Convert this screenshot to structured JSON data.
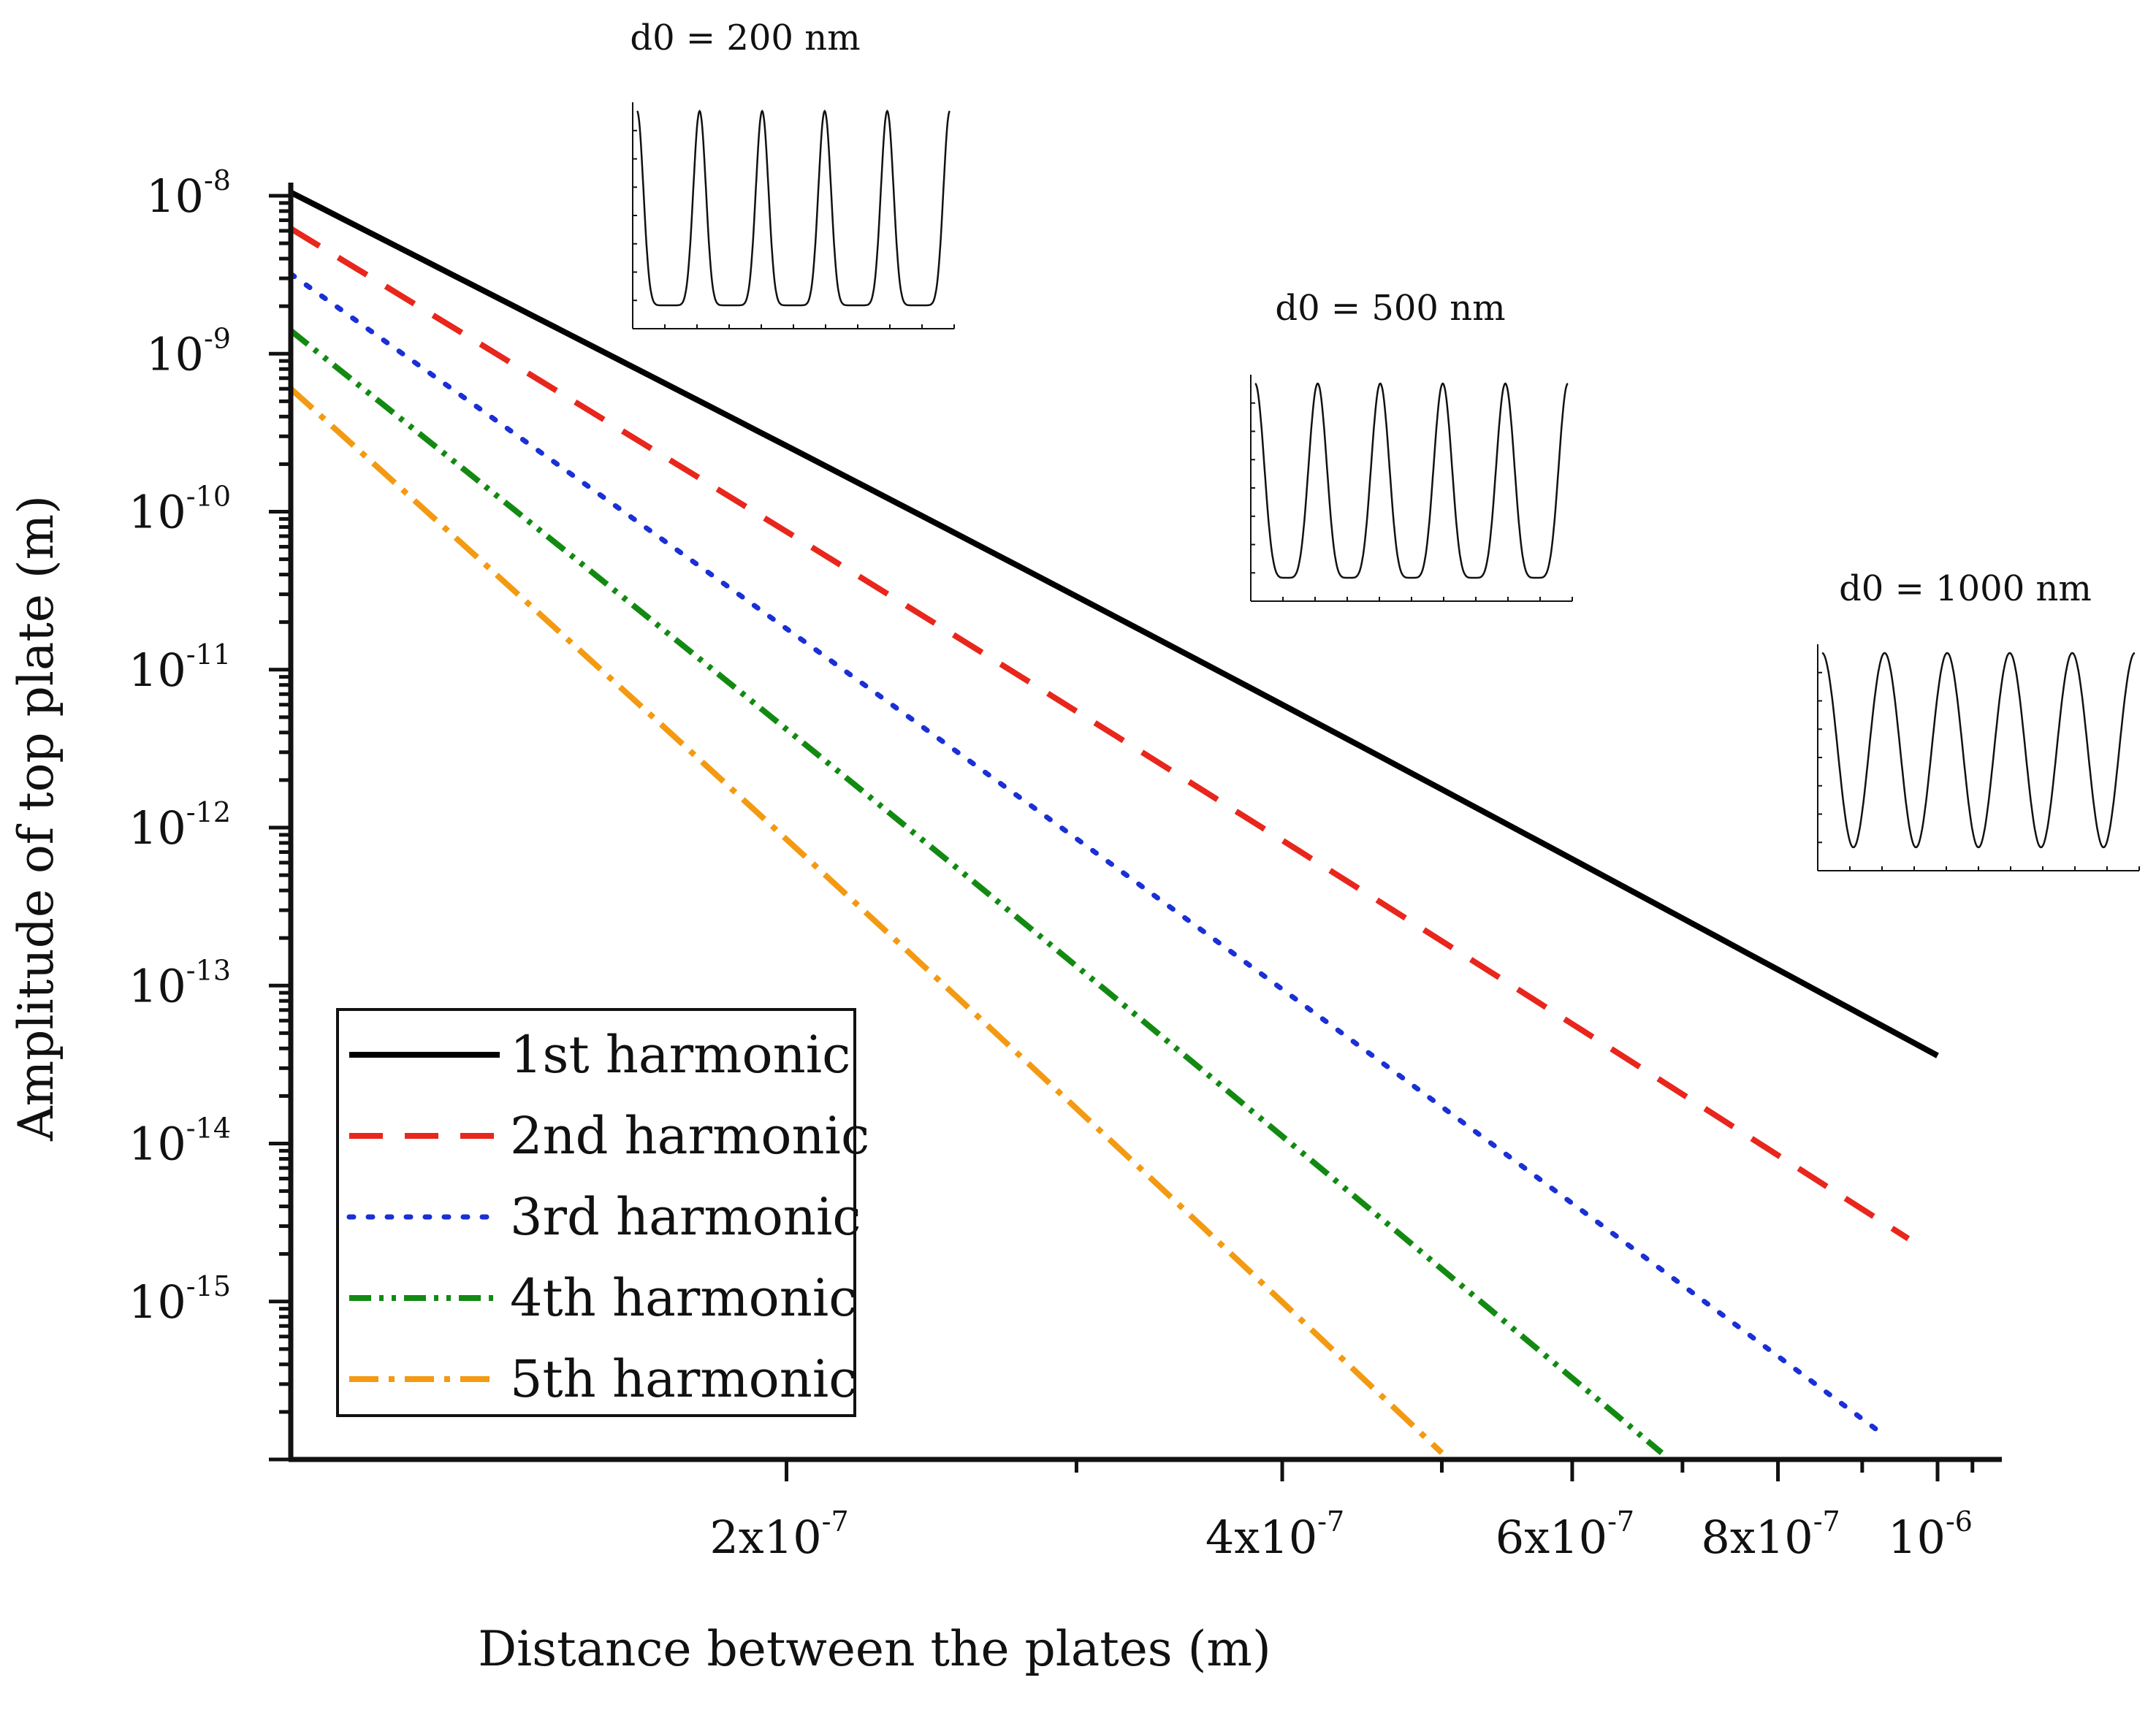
{
  "chart_data": {
    "type": "line",
    "scale": {
      "x": "log",
      "y": "log"
    },
    "xlabel": "Distance between the plates (m)",
    "ylabel": "Amplitude of top plate (m)",
    "xlim": [
      1e-07,
      1e-06
    ],
    "ylim": [
      1e-16,
      1e-08
    ],
    "x_ticks": [
      {
        "value": 2e-07,
        "base": "2x10",
        "exp": "-7"
      },
      {
        "value": 4e-07,
        "base": "4x10",
        "exp": "-7"
      },
      {
        "value": 6e-07,
        "base": "6x10",
        "exp": "-7"
      },
      {
        "value": 8e-07,
        "base": "8x10",
        "exp": "-7"
      },
      {
        "value": 1e-06,
        "base": "10",
        "exp": "-6"
      }
    ],
    "y_ticks": [
      {
        "value": 1e-08,
        "base": "10",
        "exp": "-8"
      },
      {
        "value": 1e-09,
        "base": "10",
        "exp": "-9"
      },
      {
        "value": 1e-10,
        "base": "10",
        "exp": "-10"
      },
      {
        "value": 1e-11,
        "base": "10",
        "exp": "-11"
      },
      {
        "value": 1e-12,
        "base": "10",
        "exp": "-12"
      },
      {
        "value": 1e-13,
        "base": "10",
        "exp": "-13"
      },
      {
        "value": 1e-14,
        "base": "10",
        "exp": "-14"
      },
      {
        "value": 1e-15,
        "base": "10",
        "exp": "-15"
      }
    ],
    "legend_position": "bottom-left",
    "series": [
      {
        "name": "1st harmonic",
        "color": "#000000",
        "dash": "solid",
        "start": [
          1e-07,
          1.05e-08
        ],
        "end": [
          1e-06,
          3.6e-14
        ]
      },
      {
        "name": "2nd harmonic",
        "color": "#e8261c",
        "dash": "dashed",
        "start": [
          1e-07,
          6.2e-09
        ],
        "end": [
          9.6e-07,
          2.5e-15
        ]
      },
      {
        "name": "3rd harmonic",
        "color": "#1a2fd6",
        "dash": "dotted",
        "start": [
          1e-07,
          3.2e-09
        ],
        "end": [
          9.3e-07,
          1.4e-16
        ]
      },
      {
        "name": "4th harmonic",
        "color": "#128a12",
        "dash": "dash-dot-dot",
        "start": [
          1e-07,
          1.4e-09
        ],
        "end": [
          6.8e-07,
          1.1e-16
        ]
      },
      {
        "name": "5th harmonic",
        "color": "#f39a12",
        "dash": "dash-dot",
        "start": [
          1e-07,
          6e-10
        ],
        "end": [
          5e-07,
          1.1e-16
        ]
      }
    ],
    "insets": [
      {
        "title": "d0 = 200 nm",
        "peaks": 5,
        "shape": "sharp"
      },
      {
        "title": "d0 = 500 nm",
        "peaks": 5,
        "shape": "medium"
      },
      {
        "title": "d0 = 1000 nm",
        "peaks": 5,
        "shape": "smooth"
      }
    ]
  }
}
